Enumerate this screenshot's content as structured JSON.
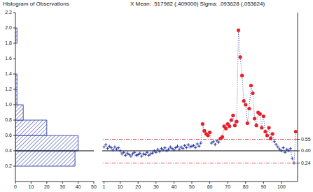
{
  "chart_data": [
    {
      "type": "histogram",
      "title": "Histogram of Observations",
      "orientation": "horizontal",
      "bins": [
        0.2,
        0.4,
        0.6,
        0.8,
        1.0,
        1.2,
        1.4,
        1.6,
        1.8,
        2.0
      ],
      "counts": [
        38,
        40,
        20,
        5,
        1,
        1,
        0,
        0,
        1
      ],
      "color": "#1c2c9c",
      "center_line": 0.4,
      "xlim": [
        0,
        50
      ],
      "xticks": [
        0,
        10,
        20,
        30,
        40,
        50
      ],
      "ylim": [
        0,
        2.2
      ],
      "yticks": [
        0.2,
        0.4,
        0.6,
        0.8,
        {
          "value": 1,
          "label": "1.0"
        },
        1.2,
        1.4,
        1.6,
        1.8,
        {
          "value": 2,
          "label": "2.0"
        },
        2.2
      ]
    },
    {
      "type": "line",
      "title": "X Mean: .517982 (.409000)  Sigma: .093628 (.053624)",
      "x": [
        1,
        2,
        3,
        4,
        5,
        6,
        7,
        8,
        9,
        10,
        11,
        12,
        13,
        14,
        15,
        16,
        17,
        18,
        19,
        20,
        21,
        22,
        23,
        24,
        25,
        26,
        27,
        28,
        29,
        30,
        31,
        32,
        33,
        34,
        35,
        36,
        37,
        38,
        39,
        40,
        41,
        42,
        43,
        44,
        45,
        46,
        47,
        48,
        49,
        50,
        51,
        52,
        53,
        54,
        55,
        56,
        57,
        58,
        59,
        60,
        61,
        62,
        63,
        64,
        65,
        66,
        67,
        68,
        69,
        70,
        71,
        72,
        73,
        74,
        75,
        76,
        77,
        78,
        79,
        80,
        81,
        82,
        83,
        84,
        85,
        86,
        87,
        88,
        89,
        90,
        91,
        92,
        93,
        94,
        95,
        96,
        97,
        98,
        99,
        100,
        101,
        102,
        103,
        104,
        105,
        106,
        107,
        108
      ],
      "series": [
        {
          "type": "line",
          "color": "#1c2c9c",
          "line_style": "dotted",
          "marker": "none",
          "values": [
            0.45,
            0.48,
            0.43,
            0.46,
            0.44,
            0.41,
            0.45,
            0.42,
            0.44,
            0.4,
            0.36,
            0.38,
            0.34,
            0.37,
            0.35,
            0.33,
            0.36,
            0.38,
            0.34,
            0.35,
            0.37,
            0.33,
            0.36,
            0.35,
            0.38,
            0.34,
            0.36,
            0.37,
            0.4,
            0.38,
            0.42,
            0.39,
            0.43,
            0.41,
            0.44,
            0.4,
            0.42,
            0.45,
            0.43,
            0.41,
            0.44,
            0.46,
            0.42,
            0.45,
            0.43,
            0.47,
            0.44,
            0.48,
            0.45,
            0.46,
            0.47,
            0.44,
            0.49,
            0.46,
            0.5,
            0.75,
            0.66,
            0.62,
            0.6,
            0.64,
            0.5,
            0.52,
            0.48,
            0.53,
            0.51,
            0.56,
            0.58,
            0.72,
            0.69,
            0.75,
            0.72,
            0.8,
            0.86,
            0.73,
            0.78,
            1.97,
            1.62,
            1.38,
            1.05,
            1.0,
            0.76,
            0.95,
            1.25,
            1.15,
            0.82,
            0.73,
            0.9,
            0.88,
            0.7,
            0.85,
            0.65,
            0.6,
            0.7,
            0.56,
            0.62,
            0.52,
            0.48,
            0.45,
            0.42,
            0.4,
            0.44,
            0.38,
            0.42,
            0.4,
            0.43,
            0.3,
            0.24,
            0.65
          ]
        },
        {
          "type": "scatter",
          "color": "#1c2c9c",
          "marker": "plus",
          "values": [
            0.45,
            0.48,
            0.43,
            0.46,
            0.44,
            0.41,
            0.45,
            0.42,
            0.44,
            0.4,
            0.36,
            0.38,
            0.34,
            0.37,
            0.35,
            0.33,
            0.36,
            0.38,
            0.34,
            0.35,
            0.37,
            0.33,
            0.36,
            0.35,
            0.38,
            0.34,
            0.36,
            0.37,
            0.4,
            0.38,
            0.42,
            0.39,
            0.43,
            0.41,
            0.44,
            0.4,
            0.42,
            0.45,
            0.43,
            0.41,
            0.44,
            0.46,
            0.42,
            0.45,
            0.43,
            0.47,
            0.44,
            0.48,
            0.45,
            0.46,
            0.47,
            0.44,
            0.49,
            0.46,
            0.5,
            null,
            null,
            null,
            null,
            null,
            0.5,
            0.52,
            0.48,
            0.53,
            0.51,
            null,
            null,
            null,
            null,
            null,
            null,
            null,
            null,
            null,
            null,
            null,
            null,
            null,
            null,
            null,
            null,
            null,
            null,
            null,
            null,
            null,
            null,
            null,
            null,
            null,
            null,
            null,
            null,
            null,
            null,
            0.52,
            0.48,
            0.45,
            0.42,
            0.4,
            0.44,
            0.38,
            0.42,
            0.4,
            0.43,
            0.3,
            0.24,
            null
          ]
        },
        {
          "type": "scatter",
          "color": "#e8202a",
          "marker": "circle",
          "values": [
            null,
            null,
            null,
            null,
            null,
            null,
            null,
            null,
            null,
            null,
            null,
            null,
            null,
            null,
            null,
            null,
            null,
            null,
            null,
            null,
            null,
            null,
            null,
            null,
            null,
            null,
            null,
            null,
            null,
            null,
            null,
            null,
            null,
            null,
            null,
            null,
            null,
            null,
            null,
            null,
            null,
            null,
            null,
            null,
            null,
            null,
            null,
            null,
            null,
            null,
            null,
            null,
            null,
            null,
            null,
            0.75,
            0.66,
            0.62,
            0.6,
            0.64,
            null,
            null,
            null,
            null,
            null,
            0.56,
            0.58,
            0.72,
            0.69,
            0.75,
            0.72,
            0.8,
            0.86,
            0.73,
            0.78,
            1.97,
            1.62,
            1.38,
            1.05,
            1.0,
            0.76,
            0.95,
            1.25,
            1.15,
            0.82,
            0.73,
            0.9,
            0.88,
            0.7,
            0.85,
            0.65,
            0.6,
            0.7,
            0.56,
            0.62,
            null,
            null,
            null,
            null,
            null,
            null,
            null,
            null,
            null,
            null,
            null,
            null,
            0.65
          ]
        }
      ],
      "center_line": 0.4,
      "control_limits": [
        0.24,
        0.55
      ],
      "limit_color": "#e8202a",
      "xlim": [
        0,
        109
      ],
      "xticks": [
        1,
        10,
        20,
        30,
        40,
        50,
        60,
        70,
        80,
        90,
        100
      ],
      "ylim": [
        0,
        2.2
      ],
      "yticks": [
        0.24,
        {
          "value": 0.4,
          "label": "0.40"
        },
        0.55
      ]
    }
  ]
}
